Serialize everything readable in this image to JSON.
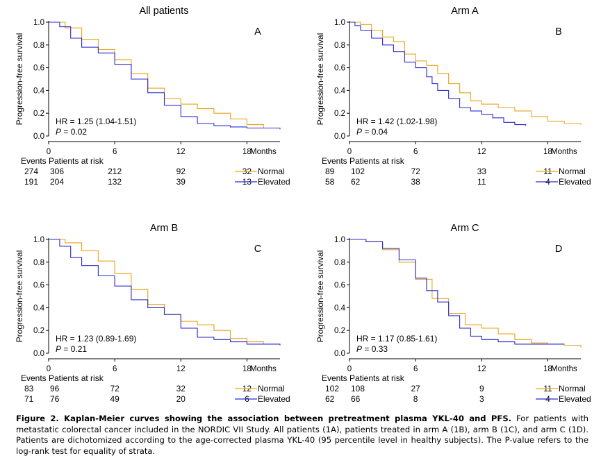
{
  "colors": {
    "normal": "#E8A318",
    "elevated": "#2A2ACF",
    "axis": "#000000"
  },
  "x_axis": {
    "ticks": [
      "0",
      "6",
      "12",
      "18"
    ],
    "unit": "Months"
  },
  "table": {
    "events_label": "Events",
    "at_risk_label": "Patients at risk"
  },
  "caption": {
    "bold": "Figure 2. Kaplan-Meier curves showing the association between pretreatment plasma YKL-40 and PFS.",
    "text": " For patients with metastatic colorectal cancer included in the NORDIC VII Study. All patients (1A), patients treated in arm A (1B), arm B (1C), and arm C (1D). Patients are dichotomized according to the age-corrected plasma YKL-40 (95 percentile level in healthy subjects). The P-value refers to the log-rank test for equality of strata."
  },
  "chart_data": [
    {
      "type": "line",
      "title": "All patients",
      "panel_label": "A",
      "ylabel": "Progression-free survival",
      "xlabel": "Months",
      "xlim": [
        0,
        21
      ],
      "ylim": [
        0,
        1
      ],
      "y_ticks": [
        "0.0",
        "0.2",
        "0.4",
        "0.6",
        "0.8",
        "1.0"
      ],
      "hr": "HR = 1.25 (1.04-1.51)",
      "p_value": "= 0.02",
      "series": [
        {
          "name": "Normal",
          "events": "274",
          "at_risk": [
            "306",
            "212",
            "92",
            "32"
          ],
          "x": [
            0,
            1.5,
            3,
            4.5,
            6,
            7.5,
            9,
            10.5,
            12,
            13.5,
            15,
            16.5,
            18,
            19.5,
            21
          ],
          "y": [
            1.0,
            0.95,
            0.85,
            0.76,
            0.67,
            0.55,
            0.42,
            0.33,
            0.28,
            0.24,
            0.2,
            0.15,
            0.1,
            0.07,
            0.06
          ]
        },
        {
          "name": "Elevated",
          "events": "191",
          "at_risk": [
            "204",
            "132",
            "39",
            "13"
          ],
          "x": [
            0,
            1,
            2,
            3,
            4.5,
            6,
            7.5,
            9,
            10.5,
            12,
            13.5,
            15,
            16.5,
            18,
            21
          ],
          "y": [
            1.0,
            0.96,
            0.86,
            0.78,
            0.73,
            0.63,
            0.5,
            0.38,
            0.27,
            0.17,
            0.11,
            0.09,
            0.08,
            0.07,
            0.06
          ]
        }
      ]
    },
    {
      "type": "line",
      "title": "Arm A",
      "panel_label": "B",
      "ylabel": "Progression-free survival",
      "xlabel": "Months",
      "xlim": [
        0,
        21
      ],
      "ylim": [
        0,
        1
      ],
      "y_ticks": [
        "0.0",
        "0.2",
        "0.4",
        "0.6",
        "0.8",
        "1.0"
      ],
      "hr": "HR = 1.42 (1.02-1.98)",
      "p_value": "= 0.04",
      "series": [
        {
          "name": "Normal",
          "events": "89",
          "at_risk": [
            "102",
            "72",
            "33",
            "11"
          ],
          "x": [
            0,
            1,
            2,
            3,
            4,
            5,
            6,
            7,
            8,
            9,
            10,
            11,
            12,
            13.5,
            15,
            16.5,
            18,
            19.5,
            21
          ],
          "y": [
            1.0,
            0.98,
            0.93,
            0.87,
            0.83,
            0.72,
            0.66,
            0.62,
            0.55,
            0.46,
            0.38,
            0.31,
            0.28,
            0.25,
            0.22,
            0.17,
            0.13,
            0.11,
            0.1
          ]
        },
        {
          "name": "Elevated",
          "events": "58",
          "at_risk": [
            "62",
            "38",
            "11",
            "4"
          ],
          "x": [
            0,
            0.5,
            1,
            2,
            3,
            4,
            5,
            6,
            7,
            7.5,
            8,
            9,
            10,
            11,
            12,
            13,
            14,
            15,
            16
          ],
          "y": [
            1.0,
            0.97,
            0.93,
            0.86,
            0.8,
            0.74,
            0.65,
            0.6,
            0.52,
            0.46,
            0.4,
            0.33,
            0.25,
            0.22,
            0.19,
            0.16,
            0.12,
            0.1,
            0.09
          ]
        }
      ]
    },
    {
      "type": "line",
      "title": "Arm B",
      "panel_label": "C",
      "ylabel": "Progression-free survival",
      "xlabel": "Months",
      "xlim": [
        0,
        21
      ],
      "ylim": [
        0,
        1
      ],
      "y_ticks": [
        "0.0",
        "0.2",
        "0.4",
        "0.6",
        "0.8",
        "1.0"
      ],
      "hr": "HR = 1.23 (0.89-1.69)",
      "p_value": "= 0.21",
      "series": [
        {
          "name": "Normal",
          "events": "83",
          "at_risk": [
            "96",
            "72",
            "32",
            "12"
          ],
          "x": [
            0,
            1.5,
            3,
            4.5,
            6,
            7.5,
            9,
            10.5,
            12,
            13.5,
            15,
            16.5,
            18,
            19.5,
            21
          ],
          "y": [
            1.0,
            0.97,
            0.9,
            0.81,
            0.7,
            0.56,
            0.43,
            0.34,
            0.28,
            0.25,
            0.2,
            0.13,
            0.1,
            0.08,
            0.07
          ]
        },
        {
          "name": "Elevated",
          "events": "71",
          "at_risk": [
            "76",
            "49",
            "20",
            "6"
          ],
          "x": [
            0,
            1,
            2,
            3,
            4.5,
            6,
            7.5,
            9,
            10.5,
            12,
            13.5,
            15,
            16.5,
            18,
            21
          ],
          "y": [
            1.0,
            0.94,
            0.84,
            0.77,
            0.68,
            0.59,
            0.47,
            0.4,
            0.34,
            0.22,
            0.14,
            0.12,
            0.1,
            0.08,
            0.07
          ]
        }
      ]
    },
    {
      "type": "line",
      "title": "Arm C",
      "panel_label": "D",
      "ylabel": "Progression-free survival",
      "xlabel": "Months",
      "xlim": [
        0,
        21
      ],
      "ylim": [
        0,
        1
      ],
      "y_ticks": [
        "0.0",
        "0.2",
        "0.4",
        "0.6",
        "0.8",
        "1.0"
      ],
      "hr": "HR = 1.17 (0.85-1.61)",
      "p_value": "= 0.33",
      "series": [
        {
          "name": "Normal",
          "events": "102",
          "at_risk": [
            "108",
            "27",
            "9",
            "11"
          ],
          "x": [
            0,
            1.5,
            3,
            4.5,
            6,
            7.5,
            9,
            10.5,
            12,
            13.5,
            15,
            16.5,
            18,
            19.5,
            21
          ],
          "y": [
            1.0,
            0.98,
            0.91,
            0.8,
            0.65,
            0.48,
            0.35,
            0.25,
            0.22,
            0.17,
            0.12,
            0.09,
            0.08,
            0.07,
            0.05
          ]
        },
        {
          "name": "Elevated",
          "events": "62",
          "at_risk": [
            "66",
            "8",
            "3",
            "4"
          ],
          "x": [
            0,
            1.5,
            3,
            4.5,
            6,
            7,
            8,
            9,
            10,
            11,
            12,
            13.5,
            15,
            16.5,
            18,
            19.5
          ],
          "y": [
            1.0,
            0.98,
            0.92,
            0.82,
            0.66,
            0.55,
            0.45,
            0.33,
            0.22,
            0.15,
            0.12,
            0.1,
            0.08,
            0.08,
            0.08,
            0.08
          ]
        }
      ]
    }
  ]
}
